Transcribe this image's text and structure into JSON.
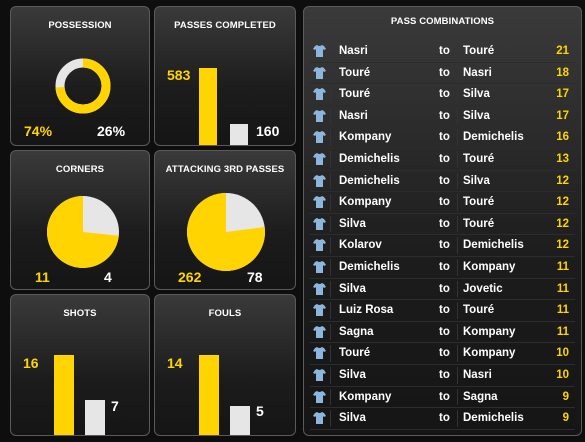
{
  "colors": {
    "yellow": "#ffd400",
    "light": "#e6e6e6",
    "shirt": "#8cb6dc"
  },
  "possession": {
    "title": "POSSESSION",
    "home": "74%",
    "away": "26%",
    "home_fraction": 0.74
  },
  "passes": {
    "title": "PASSES COMPLETED",
    "home": "583",
    "away": "160",
    "home_value": 583,
    "away_value": 160
  },
  "corners": {
    "title": "CORNERS",
    "home": "11",
    "away": "4",
    "home_value": 11,
    "away_value": 4
  },
  "attacking": {
    "title": "ATTACKING 3RD PASSES",
    "home": "262",
    "away": "78",
    "home_value": 262,
    "away_value": 78
  },
  "shots": {
    "title": "SHOTS",
    "home": "16",
    "away": "7",
    "home_value": 16,
    "away_value": 7
  },
  "fouls": {
    "title": "FOULS",
    "home": "14",
    "away": "5",
    "home_value": 14,
    "away_value": 5
  },
  "pass_combinations": {
    "title": "PASS COMBINATIONS",
    "to_label": "to",
    "rows": [
      {
        "from": "Nasri",
        "to": "Touré",
        "count": "21"
      },
      {
        "from": "Touré",
        "to": "Nasri",
        "count": "18"
      },
      {
        "from": "Touré",
        "to": "Silva",
        "count": "17"
      },
      {
        "from": "Nasri",
        "to": "Silva",
        "count": "17"
      },
      {
        "from": "Kompany",
        "to": "Demichelis",
        "count": "16"
      },
      {
        "from": "Demichelis",
        "to": "Touré",
        "count": "13"
      },
      {
        "from": "Demichelis",
        "to": "Silva",
        "count": "12"
      },
      {
        "from": "Kompany",
        "to": "Touré",
        "count": "12"
      },
      {
        "from": "Silva",
        "to": "Touré",
        "count": "12"
      },
      {
        "from": "Kolarov",
        "to": "Demichelis",
        "count": "12"
      },
      {
        "from": "Demichelis",
        "to": "Kompany",
        "count": "11"
      },
      {
        "from": "Silva",
        "to": "Jovetic",
        "count": "11"
      },
      {
        "from": "Luiz Rosa",
        "to": "Touré",
        "count": "11"
      },
      {
        "from": "Sagna",
        "to": "Kompany",
        "count": "11"
      },
      {
        "from": "Touré",
        "to": "Kompany",
        "count": "10"
      },
      {
        "from": "Silva",
        "to": "Nasri",
        "count": "10"
      },
      {
        "from": "Kompany",
        "to": "Sagna",
        "count": "9"
      },
      {
        "from": "Silva",
        "to": "Demichelis",
        "count": "9"
      }
    ]
  }
}
